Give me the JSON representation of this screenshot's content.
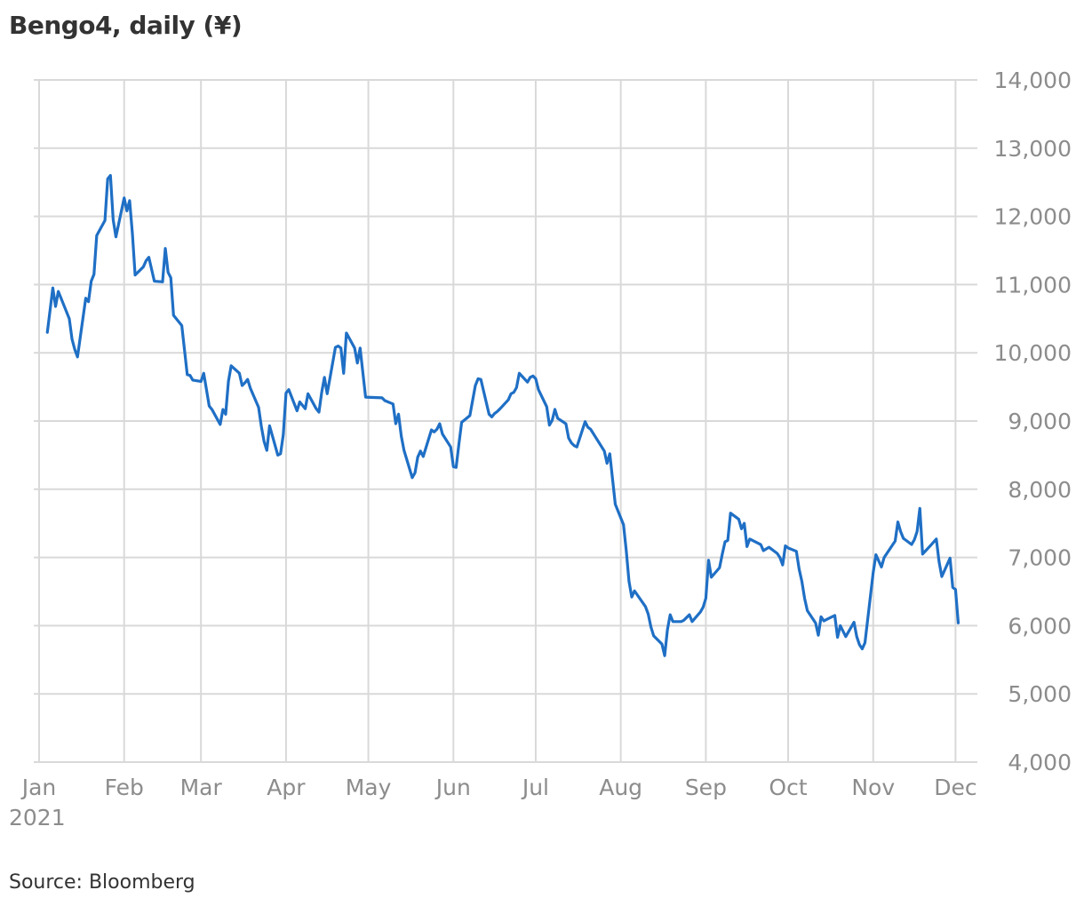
{
  "title": "Bengo4, daily (¥)",
  "source": "Source: Bloomberg",
  "colors": {
    "line": "#1f6fc5",
    "grid": "#d9d9d9",
    "tick_text": "#8c8c8c"
  },
  "chart_data": {
    "type": "line",
    "title": "Bengo4, daily (¥)",
    "xlabel": "",
    "ylabel": "",
    "ylim": [
      4000,
      14000
    ],
    "yticks": [
      4000,
      5000,
      6000,
      7000,
      8000,
      9000,
      10000,
      11000,
      12000,
      13000,
      14000
    ],
    "ytick_labels": [
      "4,000",
      "5,000",
      "6,000",
      "7,000",
      "8,000",
      "9,000",
      "10,000",
      "11,000",
      "12,000",
      "13,000",
      "14,000"
    ],
    "xlim": [
      "2021-01-01",
      "2021-12-04"
    ],
    "xticks": [
      {
        "date": "2021-01-01",
        "label": "Jan",
        "sublabel": "2021"
      },
      {
        "date": "2021-02-01",
        "label": "Feb"
      },
      {
        "date": "2021-03-01",
        "label": "Mar"
      },
      {
        "date": "2021-04-01",
        "label": "Apr"
      },
      {
        "date": "2021-05-01",
        "label": "May"
      },
      {
        "date": "2021-06-01",
        "label": "Jun"
      },
      {
        "date": "2021-07-01",
        "label": "Jul"
      },
      {
        "date": "2021-08-01",
        "label": "Aug"
      },
      {
        "date": "2021-09-01",
        "label": "Sep"
      },
      {
        "date": "2021-10-01",
        "label": "Oct"
      },
      {
        "date": "2021-11-01",
        "label": "Nov"
      },
      {
        "date": "2021-12-01",
        "label": "Dec"
      }
    ],
    "grid": true,
    "y_axis_side": "right",
    "legend": "none",
    "series": [
      {
        "x": [
          "2021-01-04",
          "2021-01-06",
          "2021-01-07",
          "2021-01-08",
          "2021-01-12",
          "2021-01-13",
          "2021-01-14",
          "2021-01-15",
          "2021-01-18",
          "2021-01-19",
          "2021-01-20",
          "2021-01-21",
          "2021-01-22",
          "2021-01-25",
          "2021-01-26",
          "2021-01-27",
          "2021-01-28",
          "2021-01-29",
          "2021-02-01",
          "2021-02-02",
          "2021-02-03",
          "2021-02-04",
          "2021-02-05",
          "2021-02-08",
          "2021-02-09",
          "2021-02-10",
          "2021-02-12",
          "2021-02-15",
          "2021-02-16",
          "2021-02-17",
          "2021-02-18",
          "2021-02-19",
          "2021-02-22",
          "2021-02-24",
          "2021-02-25",
          "2021-02-26",
          "2021-03-01",
          "2021-03-02",
          "2021-03-03",
          "2021-03-04",
          "2021-03-05",
          "2021-03-08",
          "2021-03-09",
          "2021-03-10",
          "2021-03-11",
          "2021-03-12",
          "2021-03-15",
          "2021-03-16",
          "2021-03-17",
          "2021-03-18",
          "2021-03-19",
          "2021-03-22",
          "2021-03-23",
          "2021-03-24",
          "2021-03-25",
          "2021-03-26",
          "2021-03-29",
          "2021-03-30",
          "2021-03-31",
          "2021-04-01",
          "2021-04-02",
          "2021-04-05",
          "2021-04-06",
          "2021-04-07",
          "2021-04-08",
          "2021-04-09",
          "2021-04-12",
          "2021-04-13",
          "2021-04-14",
          "2021-04-15",
          "2021-04-16",
          "2021-04-19",
          "2021-04-20",
          "2021-04-21",
          "2021-04-22",
          "2021-04-23",
          "2021-04-26",
          "2021-04-27",
          "2021-04-28",
          "2021-04-30",
          "2021-05-06",
          "2021-05-07",
          "2021-05-10",
          "2021-05-11",
          "2021-05-12",
          "2021-05-13",
          "2021-05-14",
          "2021-05-17",
          "2021-05-18",
          "2021-05-19",
          "2021-05-20",
          "2021-05-21",
          "2021-05-24",
          "2021-05-25",
          "2021-05-26",
          "2021-05-27",
          "2021-05-28",
          "2021-05-31",
          "2021-06-01",
          "2021-06-02",
          "2021-06-03",
          "2021-06-04",
          "2021-06-07",
          "2021-06-08",
          "2021-06-09",
          "2021-06-10",
          "2021-06-11",
          "2021-06-14",
          "2021-06-15",
          "2021-06-16",
          "2021-06-17",
          "2021-06-18",
          "2021-06-21",
          "2021-06-22",
          "2021-06-23",
          "2021-06-24",
          "2021-06-25",
          "2021-06-28",
          "2021-06-29",
          "2021-06-30",
          "2021-07-01",
          "2021-07-02",
          "2021-07-05",
          "2021-07-06",
          "2021-07-07",
          "2021-07-08",
          "2021-07-09",
          "2021-07-12",
          "2021-07-13",
          "2021-07-14",
          "2021-07-15",
          "2021-07-16",
          "2021-07-19",
          "2021-07-20",
          "2021-07-21",
          "2021-07-26",
          "2021-07-27",
          "2021-07-28",
          "2021-07-29",
          "2021-07-30",
          "2021-08-02",
          "2021-08-03",
          "2021-08-04",
          "2021-08-05",
          "2021-08-06",
          "2021-08-10",
          "2021-08-11",
          "2021-08-12",
          "2021-08-13",
          "2021-08-16",
          "2021-08-17",
          "2021-08-18",
          "2021-08-19",
          "2021-08-20",
          "2021-08-23",
          "2021-08-24",
          "2021-08-25",
          "2021-08-26",
          "2021-08-27",
          "2021-08-30",
          "2021-08-31",
          "2021-09-01",
          "2021-09-02",
          "2021-09-03",
          "2021-09-06",
          "2021-09-07",
          "2021-09-08",
          "2021-09-09",
          "2021-09-10",
          "2021-09-13",
          "2021-09-14",
          "2021-09-15",
          "2021-09-16",
          "2021-09-17",
          "2021-09-21",
          "2021-09-22",
          "2021-09-24",
          "2021-09-27",
          "2021-09-28",
          "2021-09-29",
          "2021-09-30",
          "2021-10-01",
          "2021-10-04",
          "2021-10-05",
          "2021-10-06",
          "2021-10-07",
          "2021-10-08",
          "2021-10-11",
          "2021-10-12",
          "2021-10-13",
          "2021-10-14",
          "2021-10-15",
          "2021-10-18",
          "2021-10-19",
          "2021-10-20",
          "2021-10-21",
          "2021-10-22",
          "2021-10-25",
          "2021-10-26",
          "2021-10-27",
          "2021-10-28",
          "2021-10-29",
          "2021-11-01",
          "2021-11-02",
          "2021-11-04",
          "2021-11-05",
          "2021-11-08",
          "2021-11-09",
          "2021-11-10",
          "2021-11-11",
          "2021-11-12",
          "2021-11-15",
          "2021-11-16",
          "2021-11-17",
          "2021-11-18",
          "2021-11-19",
          "2021-11-22",
          "2021-11-24",
          "2021-11-25",
          "2021-11-26",
          "2021-11-29",
          "2021-11-30",
          "2021-12-01",
          "2021-12-02"
        ],
        "values": [
          10300,
          10950,
          10680,
          10900,
          10500,
          10200,
          10050,
          9940,
          10800,
          10750,
          11050,
          11150,
          11720,
          11940,
          12550,
          12600,
          11950,
          11700,
          12270,
          12080,
          12230,
          11750,
          11140,
          11260,
          11350,
          11400,
          11050,
          11040,
          11530,
          11180,
          11100,
          10550,
          10400,
          9680,
          9670,
          9600,
          9580,
          9700,
          9460,
          9220,
          9170,
          8950,
          9170,
          9100,
          9580,
          9810,
          9700,
          9520,
          9560,
          9610,
          9480,
          9200,
          8920,
          8700,
          8570,
          8930,
          8500,
          8520,
          8800,
          9410,
          9460,
          9150,
          9280,
          9230,
          9180,
          9400,
          9180,
          9130,
          9420,
          9640,
          9400,
          10080,
          10100,
          10070,
          9700,
          10290,
          10070,
          9850,
          10070,
          9350,
          9340,
          9300,
          9250,
          8960,
          9100,
          8780,
          8570,
          8170,
          8240,
          8470,
          8560,
          8480,
          8870,
          8840,
          8880,
          8960,
          8810,
          8620,
          8330,
          8320,
          8660,
          8980,
          9080,
          9300,
          9520,
          9620,
          9610,
          9100,
          9060,
          9110,
          9140,
          9180,
          9310,
          9400,
          9420,
          9490,
          9700,
          9570,
          9640,
          9660,
          9620,
          9460,
          9210,
          8940,
          9010,
          9170,
          9040,
          8960,
          8750,
          8680,
          8640,
          8620,
          8990,
          8910,
          8880,
          8560,
          8380,
          8520,
          8150,
          7780,
          7480,
          7100,
          6650,
          6420,
          6510,
          6280,
          6170,
          5980,
          5850,
          5730,
          5560,
          5940,
          6160,
          6060,
          6060,
          6080,
          6120,
          6160,
          6060,
          6200,
          6270,
          6400,
          6960,
          6710,
          6850,
          7050,
          7230,
          7250,
          7650,
          7560,
          7420,
          7500,
          7160,
          7270,
          7190,
          7100,
          7150,
          7060,
          7000,
          6890,
          7170,
          7140,
          7090,
          6830,
          6650,
          6400,
          6220,
          6040,
          5860,
          6130,
          6070,
          6090,
          6150,
          5830,
          6000,
          5920,
          5840,
          6050,
          5840,
          5720,
          5660,
          5750,
          6780,
          7040,
          6860,
          7000,
          7180,
          7240,
          7520,
          7380,
          7280,
          7190,
          7260,
          7380,
          7720,
          7050,
          7180,
          7270,
          6940,
          6720,
          6990,
          6560,
          6530,
          6040
        ]
      }
    ]
  }
}
